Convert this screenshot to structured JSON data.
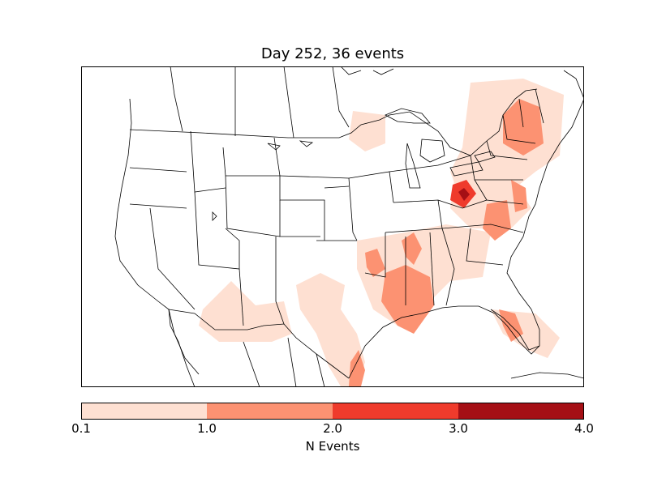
{
  "title": "Day 252, 36 events",
  "colorbar": {
    "label": "N Events",
    "ticks": [
      "0.1",
      "1.0",
      "2.0",
      "3.0",
      "4.0"
    ],
    "levels": [
      {
        "from": 0.1,
        "to": 1.0,
        "color": "#fee0d2"
      },
      {
        "from": 1.0,
        "to": 2.0,
        "color": "#fc9272"
      },
      {
        "from": 2.0,
        "to": 3.0,
        "color": "#ef3b2c"
      },
      {
        "from": 3.0,
        "to": 4.0,
        "color": "#a50f15"
      }
    ]
  },
  "map": {
    "region": "North America (contiguous US view)",
    "basemap_lines": [
      "coastlines",
      "country borders",
      "state borders",
      "lakes"
    ]
  }
}
